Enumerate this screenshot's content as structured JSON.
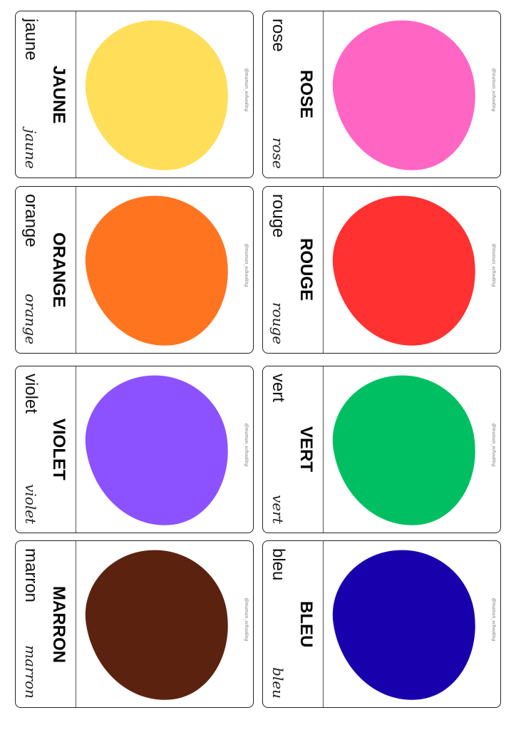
{
  "watermark": "@maman_schooling",
  "cards": [
    {
      "upper": "ROSE",
      "lower": "rose",
      "cursive": "rose",
      "color": "#ff66c4"
    },
    {
      "upper": "JAUNE",
      "lower": "jaune",
      "cursive": "jaune",
      "color": "#ffde59"
    },
    {
      "upper": "ROUGE",
      "lower": "rouge",
      "cursive": "rouge",
      "color": "#ff3131"
    },
    {
      "upper": "ORANGE",
      "lower": "orange",
      "cursive": "orange",
      "color": "#ff751f"
    },
    {
      "upper": "VERT",
      "lower": "vert",
      "cursive": "vert",
      "color": "#00bf63"
    },
    {
      "upper": "VIOLET",
      "lower": "violet",
      "cursive": "violet",
      "color": "#8c52ff"
    },
    {
      "upper": "BLEU",
      "lower": "bleu",
      "cursive": "bleu",
      "color": "#1800ad"
    },
    {
      "upper": "MARRON",
      "lower": "marron",
      "cursive": "marron",
      "color": "#5c2210"
    }
  ]
}
